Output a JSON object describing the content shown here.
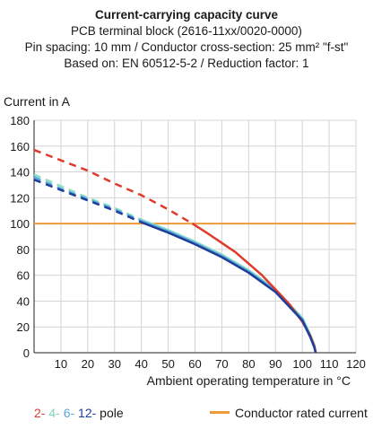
{
  "chart_data": {
    "type": "line",
    "title": "Current-carrying capacity curve",
    "subtitles": [
      "PCB terminal block (2616-11xx/0020-0000)",
      "Pin spacing: 10 mm / Conductor cross-section: 25 mm² \"f-st\"",
      "Based on: EN 60512-5-2 / Reduction factor: 1"
    ],
    "ylabel": "Current in A",
    "xlabel": "Ambient operating temperature in °C",
    "xlim": [
      0,
      120
    ],
    "ylim": [
      0,
      180
    ],
    "xticks": [
      "10",
      "20",
      "30",
      "40",
      "50",
      "60",
      "70",
      "80",
      "90",
      "100",
      "110",
      "120"
    ],
    "yticks": [
      "0",
      "20",
      "40",
      "60",
      "80",
      "100",
      "120",
      "140",
      "160",
      "180"
    ],
    "grid": true,
    "series": [
      {
        "name": "2-",
        "color": "#e03a2c",
        "dashed_until_x": 59,
        "x": [
          0,
          10,
          20,
          30,
          40,
          50,
          59,
          65,
          70,
          75,
          80,
          85,
          90,
          95,
          100,
          103,
          104.5,
          105
        ],
        "y": [
          157,
          149,
          141,
          131,
          122,
          111,
          100,
          92,
          85,
          78,
          69,
          60,
          49,
          38,
          24,
          13,
          5,
          0
        ]
      },
      {
        "name": "4-",
        "color": "#8ee0c4",
        "dashed_until_x": 40,
        "x": [
          0,
          10,
          20,
          30,
          40,
          50,
          60,
          70,
          80,
          90,
          100,
          103,
          104.5,
          105
        ],
        "y": [
          138,
          129,
          120,
          112,
          103,
          95,
          86,
          76,
          64,
          49,
          27,
          14,
          6,
          0
        ]
      },
      {
        "name": "6-",
        "color": "#5aa7e0",
        "dashed_until_x": 40,
        "x": [
          0,
          10,
          20,
          30,
          40,
          50,
          60,
          70,
          80,
          90,
          100,
          103,
          104.5,
          105
        ],
        "y": [
          136,
          127,
          119,
          111,
          102,
          94,
          85,
          75,
          63,
          48,
          26,
          13,
          5,
          0
        ]
      },
      {
        "name": "12-",
        "color": "#1e3e9a",
        "dashed_until_x": 40,
        "x": [
          0,
          10,
          20,
          30,
          40,
          50,
          60,
          70,
          80,
          90,
          100,
          103,
          104.5,
          105
        ],
        "y": [
          134,
          126,
          118,
          110,
          101,
          93,
          84,
          74,
          62,
          47,
          25,
          12,
          4,
          0
        ]
      }
    ],
    "reference_line": {
      "name": "Conductor rated current",
      "y": 100,
      "color": "#ef9a3a"
    },
    "legend": {
      "placement": "bottom",
      "pole_suffix": "pole"
    }
  }
}
